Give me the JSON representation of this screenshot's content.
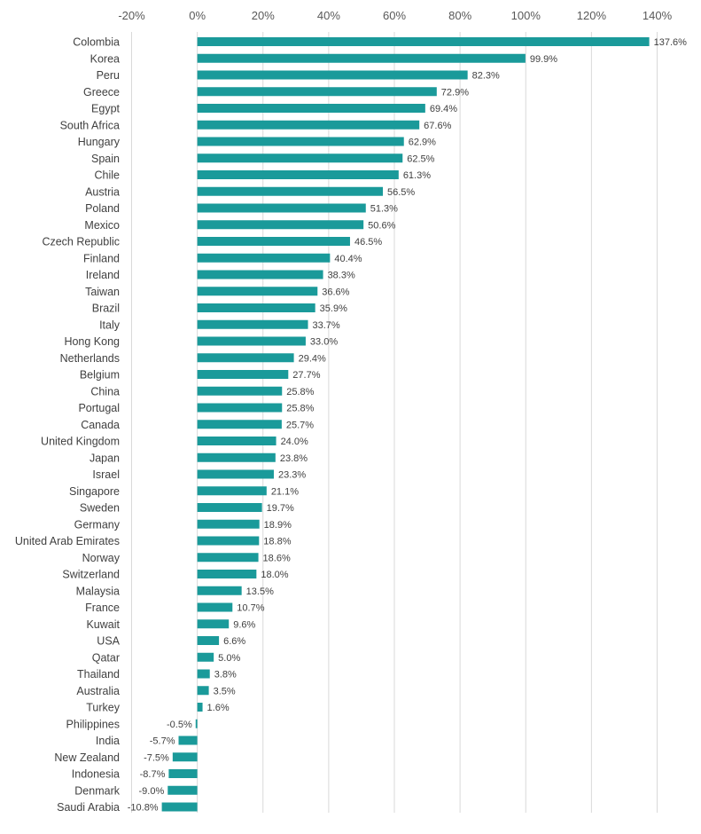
{
  "chart_data": {
    "type": "bar",
    "orientation": "horizontal",
    "title": "",
    "xlabel": "",
    "ylabel": "",
    "xlim": [
      -20,
      140
    ],
    "x_ticks": [
      -20,
      0,
      20,
      40,
      60,
      80,
      100,
      120,
      140
    ],
    "tick_suffix": "%",
    "axis_position": "top",
    "grid": true,
    "legend": "none",
    "bar_color": "#1a9a9a",
    "gridline_color": "#d9d9d9",
    "categories": [
      "Colombia",
      "Korea",
      "Peru",
      "Greece",
      "Egypt",
      "South Africa",
      "Hungary",
      "Spain",
      "Chile",
      "Austria",
      "Poland",
      "Mexico",
      "Czech Republic",
      "Finland",
      "Ireland",
      "Taiwan",
      "Brazil",
      "Italy",
      "Hong Kong",
      "Netherlands",
      "Belgium",
      "China",
      "Portugal",
      "Canada",
      "United Kingdom",
      "Japan",
      "Israel",
      "Singapore",
      "Sweden",
      "Germany",
      "United Arab Emirates",
      "Norway",
      "Switzerland",
      "Malaysia",
      "France",
      "Kuwait",
      "USA",
      "Qatar",
      "Thailand",
      "Australia",
      "Turkey",
      "Philippines",
      "India",
      "New Zealand",
      "Indonesia",
      "Denmark",
      "Saudi Arabia"
    ],
    "values": [
      137.6,
      99.9,
      82.3,
      72.9,
      69.4,
      67.6,
      62.9,
      62.5,
      61.3,
      56.5,
      51.3,
      50.6,
      46.5,
      40.4,
      38.3,
      36.6,
      35.9,
      33.7,
      33.0,
      29.4,
      27.7,
      25.8,
      25.8,
      25.7,
      24.0,
      23.8,
      23.3,
      21.1,
      19.7,
      18.9,
      18.8,
      18.6,
      18.0,
      13.5,
      10.7,
      9.6,
      6.6,
      5.0,
      3.8,
      3.5,
      1.6,
      -0.5,
      -5.7,
      -7.5,
      -8.7,
      -9.0,
      -10.8
    ],
    "value_labels": [
      "137.6%",
      "99.9%",
      "82.3%",
      "72.9%",
      "69.4%",
      "67.6%",
      "62.9%",
      "62.5%",
      "61.3%",
      "56.5%",
      "51.3%",
      "50.6%",
      "46.5%",
      "40.4%",
      "38.3%",
      "36.6%",
      "35.9%",
      "33.7%",
      "33.0%",
      "29.4%",
      "27.7%",
      "25.8%",
      "25.8%",
      "25.7%",
      "24.0%",
      "23.8%",
      "23.3%",
      "21.1%",
      "19.7%",
      "18.9%",
      "18.8%",
      "18.6%",
      "18.0%",
      "13.5%",
      "10.7%",
      "9.6%",
      "6.6%",
      "5.0%",
      "3.8%",
      "3.5%",
      "1.6%",
      "-0.5%",
      "-5.7%",
      "-7.5%",
      "-8.7%",
      "-9.0%",
      "-10.8%"
    ]
  }
}
